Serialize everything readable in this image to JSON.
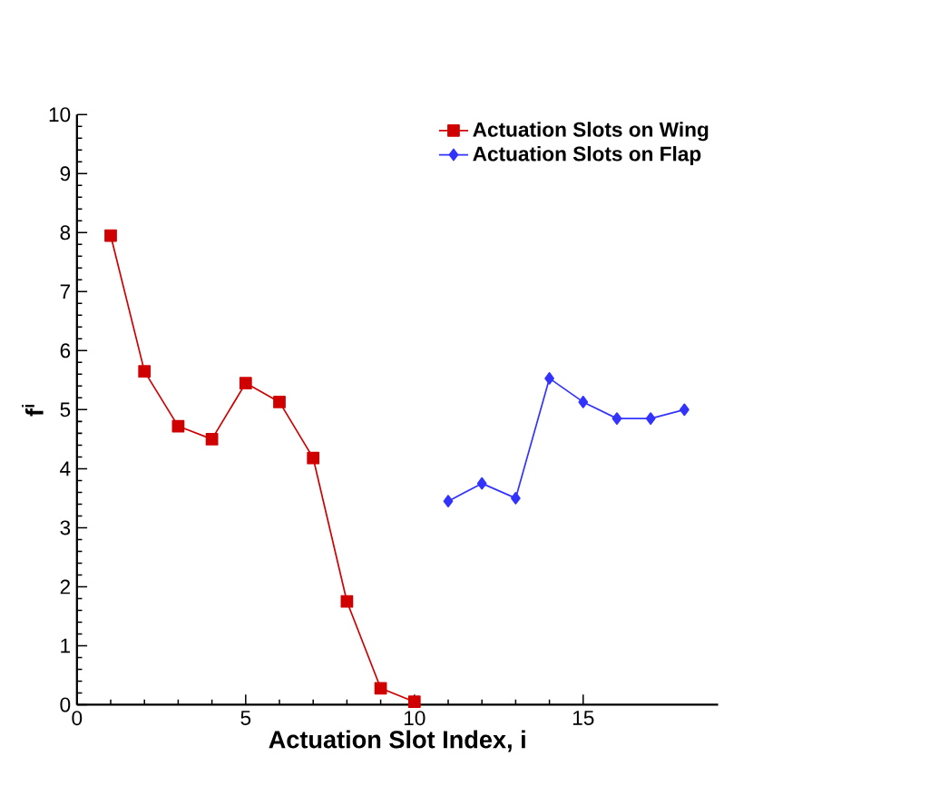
{
  "chart_data": {
    "type": "line",
    "xlabel": "Actuation Slot Index, i",
    "ylabel": "f$^{i}$",
    "xlim": [
      0,
      19
    ],
    "ylim": [
      0,
      10
    ],
    "xticks": [
      0,
      5,
      10,
      15
    ],
    "yticks": [
      0,
      1,
      2,
      3,
      4,
      5,
      6,
      7,
      8,
      9,
      10
    ],
    "legend": "top right",
    "grid": false,
    "line_style": "solid",
    "series": [
      {
        "name": "Actuation Slots on Wing",
        "color": "#d00000",
        "marker": "square",
        "x": [
          1,
          2,
          3,
          4,
          5,
          6,
          7,
          8,
          9,
          10
        ],
        "values": [
          7.95,
          5.65,
          4.72,
          4.5,
          5.45,
          5.13,
          4.18,
          1.75,
          0.28,
          0.05
        ]
      },
      {
        "name": "Actuation Slots on Flap",
        "color": "#3333ff",
        "marker": "diamond",
        "x": [
          11,
          12,
          13,
          14,
          15,
          16,
          17,
          18
        ],
        "values": [
          3.45,
          3.75,
          3.5,
          5.53,
          5.13,
          4.85,
          4.85,
          5.0
        ]
      }
    ]
  }
}
